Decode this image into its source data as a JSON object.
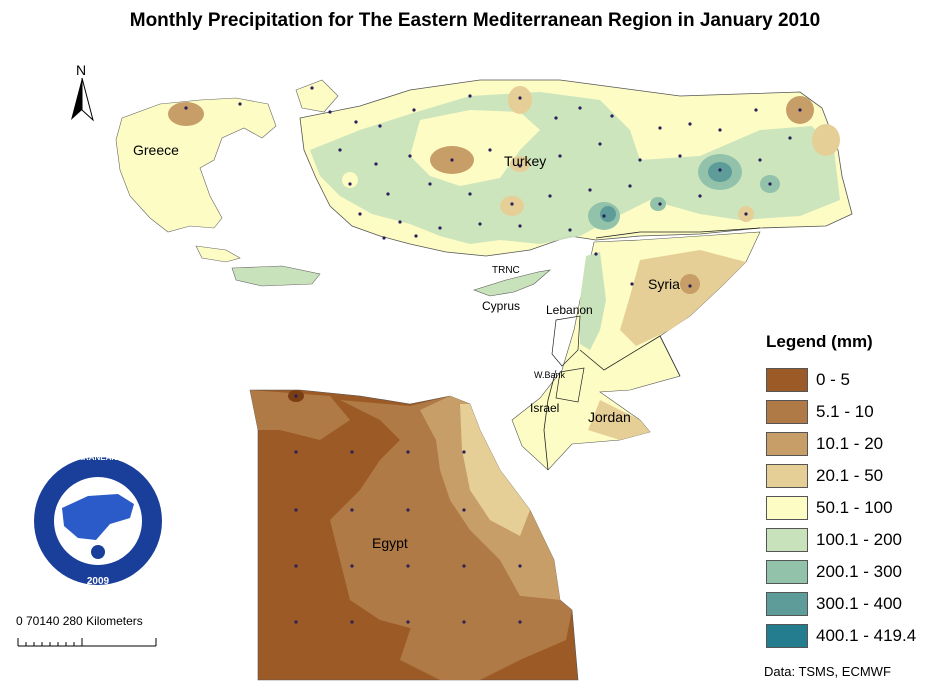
{
  "title": "Monthly Precipitation for The Eastern Mediterranean Region in January 2010",
  "north_arrow": {
    "label": "N",
    "icon": "north-arrow-icon"
  },
  "country_labels": {
    "greece": "Greece",
    "turkey": "Turkey",
    "trnc": "TRNC",
    "cyprus": "Cyprus",
    "lebanon": "Lebanon",
    "syria": "Syria",
    "west_bank": "W.Bank",
    "israel": "Israel",
    "jordan": "Jordan",
    "egypt": "Egypt"
  },
  "legend": {
    "title": "Legend (mm)",
    "items": [
      {
        "label": "0 - 5",
        "color": "#9c5a26"
      },
      {
        "label": "5.1 - 10",
        "color": "#b07a46"
      },
      {
        "label": "10.1 - 20",
        "color": "#c89e68"
      },
      {
        "label": "20.1 - 50",
        "color": "#e6cf96"
      },
      {
        "label": "50.1 - 100",
        "color": "#fcfcc4"
      },
      {
        "label": "100.1 - 200",
        "color": "#c8e2bc"
      },
      {
        "label": "200.1 - 300",
        "color": "#92c2aa"
      },
      {
        "label": "300.1 - 400",
        "color": "#5e9c9a"
      },
      {
        "label": "400.1 - 419.4",
        "color": "#237d8e"
      }
    ]
  },
  "scale_bar": {
    "ticks": "0   70140    280 Kilometers"
  },
  "logo": {
    "text_top": "EASTERN MEDITERRANEAN CLIMATE CENTRE",
    "year": "2009",
    "colors": {
      "ring": "#1a3f9a",
      "inner": "#ffffff",
      "land": "#2a5bc8"
    }
  },
  "source": "Data:  TSMS, ECMWF"
}
